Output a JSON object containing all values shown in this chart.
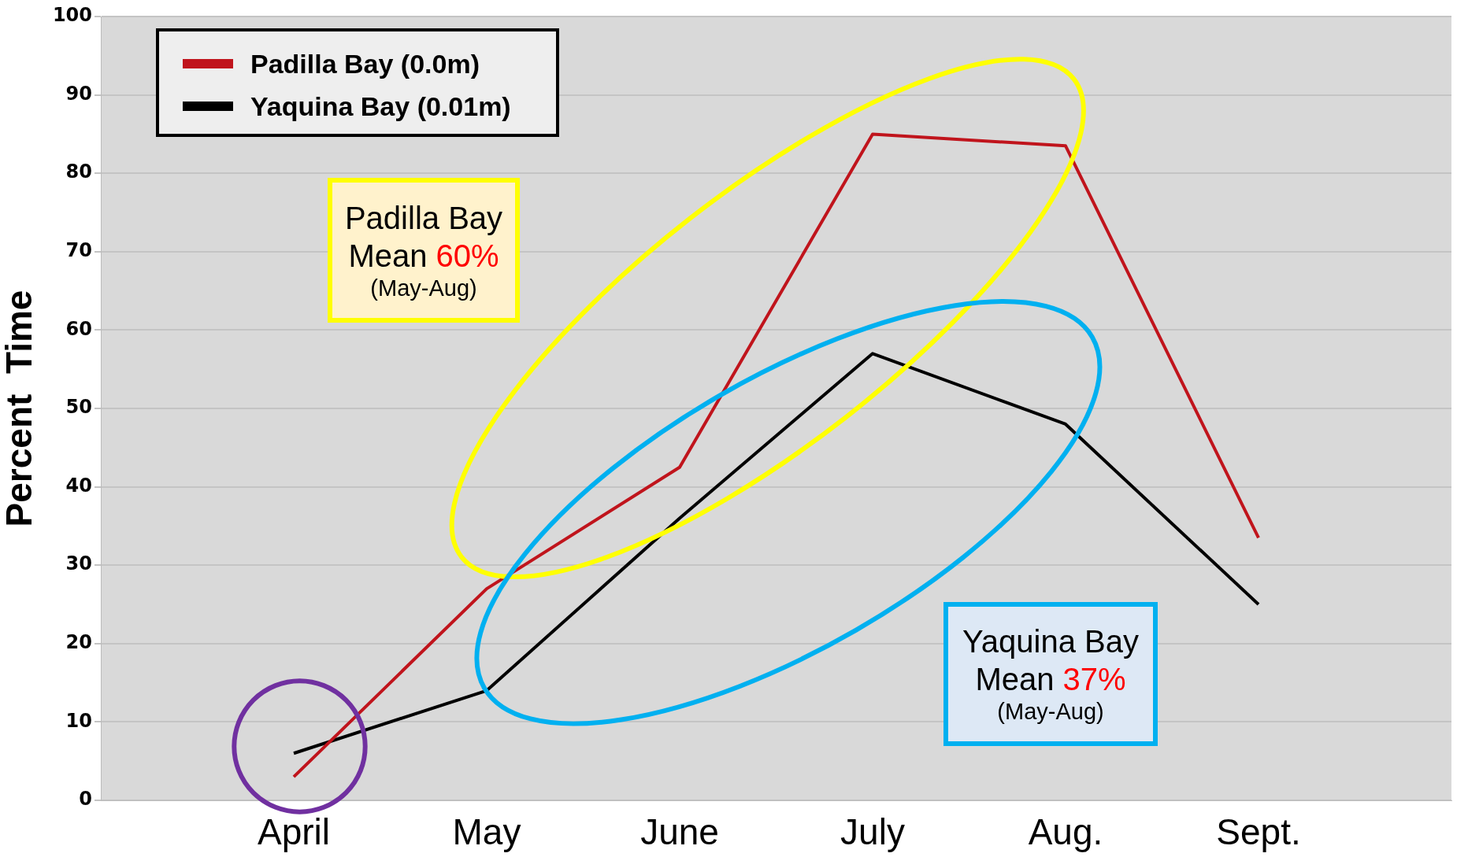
{
  "chart_data": {
    "type": "line",
    "ylabel": "Percent  Time",
    "categories": [
      "April",
      "May",
      "June",
      "July",
      "Aug.",
      "Sept."
    ],
    "series": [
      {
        "name": "Padilla Bay (0.0m)",
        "color": "#c0141c",
        "values": [
          3,
          27,
          42.5,
          85,
          83.5,
          33.5
        ]
      },
      {
        "name": "Yaquina Bay (0.01m)",
        "color": "#000000",
        "values": [
          6,
          14,
          36,
          57,
          48,
          25
        ]
      }
    ],
    "ylim": [
      0,
      100
    ],
    "yticks": [
      0,
      10,
      20,
      30,
      40,
      50,
      60,
      70,
      80,
      90,
      100
    ],
    "grid": "y",
    "legend": "top left",
    "marker": "none",
    "line_style": "solid",
    "annotations": [
      "Padilla Bay\nMean 60%\n(May-Aug)",
      "Yaquina Bay\nMean 37%\n(May-Aug)"
    ]
  }
}
